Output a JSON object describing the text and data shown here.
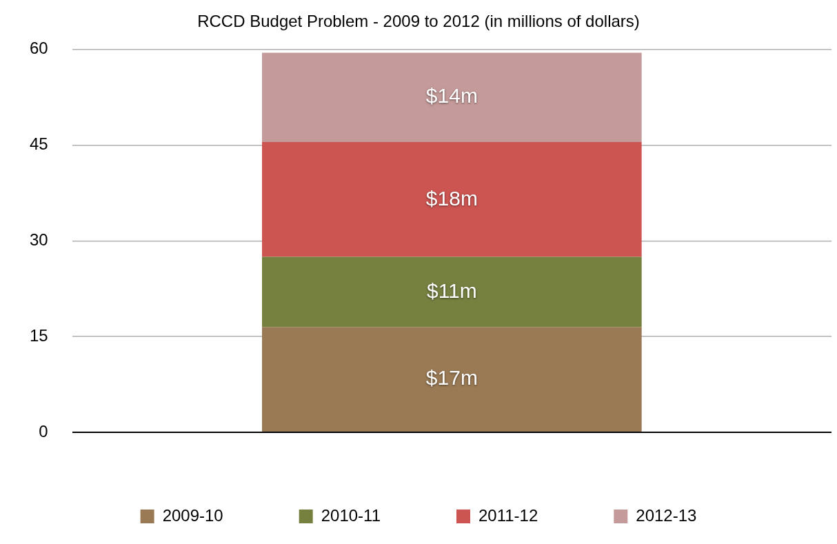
{
  "chart_data": {
    "type": "bar",
    "title": "RCCD Budget Problem - 2009 to 2012 (in millions of dollars)",
    "categories": [
      null
    ],
    "stacked": true,
    "series": [
      {
        "name": "2009-10",
        "color": "#9a7a55",
        "values": [
          16.5
        ],
        "value_labels": [
          "$17m"
        ]
      },
      {
        "name": "2010-11",
        "color": "#76803f",
        "values": [
          11
        ],
        "value_labels": [
          "$11m"
        ]
      },
      {
        "name": "2011-12",
        "color": "#cc5552",
        "values": [
          18
        ],
        "value_labels": [
          "$18m"
        ]
      },
      {
        "name": "2012-13",
        "color": "#c49a9a",
        "values": [
          14
        ],
        "value_labels": [
          "$14m"
        ]
      }
    ],
    "ylim": [
      0,
      60
    ],
    "yticks": [
      0,
      15,
      30,
      45,
      60
    ],
    "grid": "y",
    "legend": "bottom"
  }
}
